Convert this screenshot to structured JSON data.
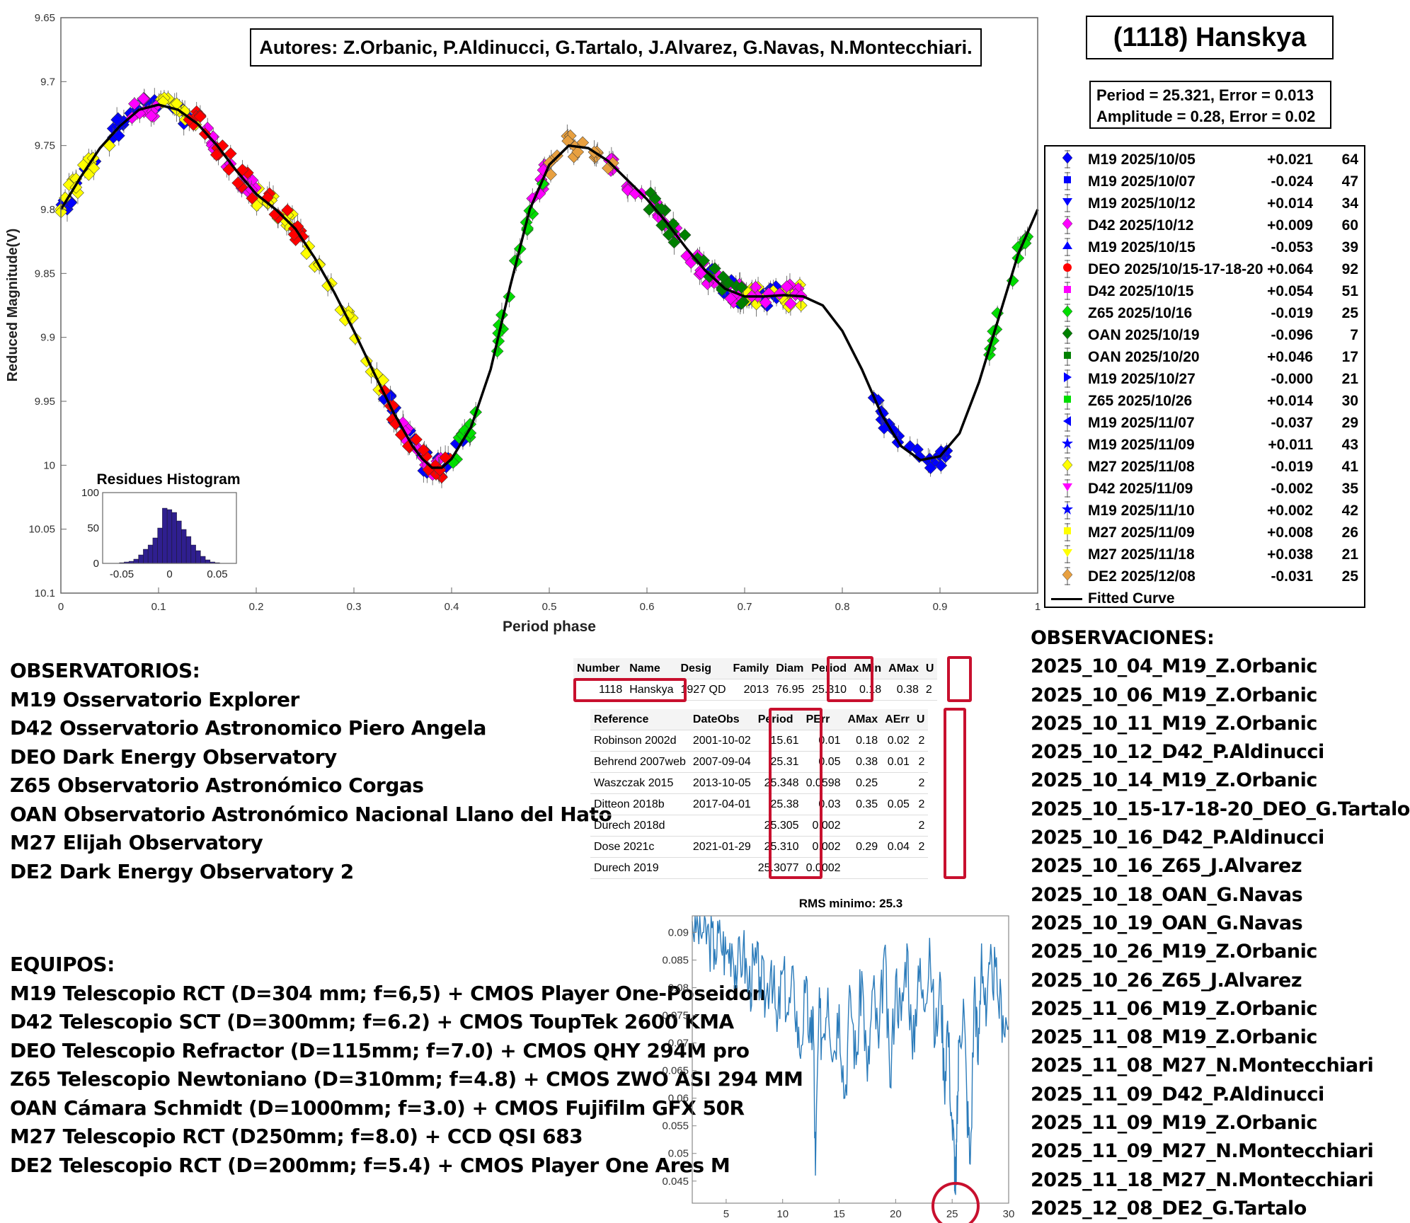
{
  "title": "(1118) Hanskya",
  "authors": "Autores: Z.Orbanic, P.Aldinucci, G.Tartalo, J.Alvarez, G.Navas, N.Montecchiari.",
  "period_box": {
    "line1": "Period =  25.321, Error = 0.013",
    "line2": "Amplitude = 0.28, Error = 0.02"
  },
  "legend": {
    "items": [
      {
        "name": "M19 2025/10/05",
        "offset": "+0.021",
        "count": "64",
        "color": "#0000ff",
        "marker": "diamond"
      },
      {
        "name": "M19 2025/10/07",
        "offset": "-0.024",
        "count": "47",
        "color": "#0000ff",
        "marker": "square"
      },
      {
        "name": "M19 2025/10/12",
        "offset": "+0.014",
        "count": "34",
        "color": "#0000ff",
        "marker": "tri-down"
      },
      {
        "name": "D42 2025/10/12",
        "offset": "+0.009",
        "count": "60",
        "color": "#ff00ff",
        "marker": "diamond"
      },
      {
        "name": "M19 2025/10/15",
        "offset": "-0.053",
        "count": "39",
        "color": "#0000ff",
        "marker": "tri-up"
      },
      {
        "name": "DEO 2025/10/15-17-18-20",
        "offset": "+0.064",
        "count": "92",
        "color": "#ff0000",
        "marker": "circle"
      },
      {
        "name": "D42 2025/10/15",
        "offset": "+0.054",
        "count": "51",
        "color": "#ff00ff",
        "marker": "square"
      },
      {
        "name": "Z65 2025/10/16",
        "offset": "-0.019",
        "count": "25",
        "color": "#00dd00",
        "marker": "diamond"
      },
      {
        "name": "OAN 2025/10/19",
        "offset": "-0.096",
        "count": "7",
        "color": "#008000",
        "marker": "diamond"
      },
      {
        "name": "OAN 2025/10/20",
        "offset": "+0.046",
        "count": "17",
        "color": "#008000",
        "marker": "square"
      },
      {
        "name": "M19 2025/10/27",
        "offset": "-0.000",
        "count": "21",
        "color": "#0000ff",
        "marker": "tri-right"
      },
      {
        "name": "Z65 2025/10/26",
        "offset": "+0.014",
        "count": "30",
        "color": "#00dd00",
        "marker": "square"
      },
      {
        "name": "M19 2025/11/07",
        "offset": "-0.037",
        "count": "29",
        "color": "#0000ff",
        "marker": "tri-left"
      },
      {
        "name": "M19 2025/11/09",
        "offset": "+0.011",
        "count": "43",
        "color": "#0000ff",
        "marker": "star"
      },
      {
        "name": "M27 2025/11/08",
        "offset": "-0.019",
        "count": "41",
        "color": "#ffff00",
        "marker": "diamond"
      },
      {
        "name": "D42 2025/11/09",
        "offset": "-0.002",
        "count": "35",
        "color": "#ff00ff",
        "marker": "tri-down"
      },
      {
        "name": "M19 2025/11/10",
        "offset": "+0.002",
        "count": "42",
        "color": "#0000ff",
        "marker": "star"
      },
      {
        "name": "M27 2025/11/09",
        "offset": "+0.008",
        "count": "26",
        "color": "#ffff00",
        "marker": "square"
      },
      {
        "name": "M27 2025/11/18",
        "offset": "+0.038",
        "count": "21",
        "color": "#ffff00",
        "marker": "tri-down"
      },
      {
        "name": "DE2 2025/12/08",
        "offset": "-0.031",
        "count": "25",
        "color": "#e8a040",
        "marker": "diamond"
      }
    ],
    "fitted_label": "Fitted Curve"
  },
  "observatorios": {
    "heading": "OBSERVATORIOS:",
    "lines": [
      "M19 Osservatorio Explorer",
      "D42 Osservatorio Astronomico Piero Angela",
      "DEO Dark Energy Observatory",
      "Z65 Observatorio Astronómico Corgas",
      "OAN Observatorio Astronómico Nacional Llano del Hato",
      "M27 Elijah Observatory",
      "DE2 Dark Energy Observatory 2"
    ]
  },
  "equipos": {
    "heading": "EQUIPOS:",
    "lines": [
      "M19 Telescopio RCT (D=304 mm; f=6,5) + CMOS Player One-Poseidon",
      "D42 Telescopio SCT (D=300mm; f=6.2) + CMOS ToupTek 2600 KMA",
      "DEO Telescopio Refractor (D=115mm; f=7.0) + CMOS QHY 294M pro",
      "Z65 Telescopio Newtoniano (D=310mm; f=4.8) + CMOS ZWO ASI 294 MM",
      "OAN Cámara Schmidt (D=1000mm; f=3.0) + CMOS Fujifilm GFX 50R",
      "M27 Telescopio RCT (D250mm; f=8.0) + CCD QSI 683",
      "DE2 Telescopio RCT (D=200mm; f=5.4) + CMOS Player One Ares M"
    ]
  },
  "observaciones": {
    "heading": "OBSERVACIONES:",
    "lines": [
      "2025_10_04_M19_Z.Orbanic",
      "2025_10_06_M19_Z.Orbanic",
      "2025_10_11_M19_Z.Orbanic",
      "2025_10_12_D42_P.Aldinucci",
      "2025_10_14_M19_Z.Orbanic",
      "2025_10_15-17-18-20_DEO_G.Tartalo",
      "2025_10_16_D42_P.Aldinucci",
      "2025_10_16_Z65_J.Alvarez",
      "2025_10_18_OAN_G.Navas",
      "2025_10_19_OAN_G.Navas",
      "2025_10_26_M19_Z.Orbanic",
      "2025_10_26_Z65_J.Alvarez",
      "2025_11_06_M19_Z.Orbanic",
      "2025_11_08_M19_Z.Orbanic",
      "2025_11_08_M27_N.Montecchiari",
      "2025_11_09_D42_P.Aldinucci",
      "2025_11_09_M19_Z.Orbanic",
      "2025_11_09_M27_N.Montecchiari",
      "2025_11_18_M27_N.Montecchiari",
      "2025_12_08_DE2_G.Tartalo"
    ]
  },
  "lcdb_table": {
    "headers": [
      "Number",
      "Name",
      "Desig",
      "Family",
      "Diam",
      "Period",
      "AMin",
      "AMax",
      "U"
    ],
    "row": [
      "1118",
      "Hanskya",
      "1927 QD",
      "2013",
      "76.95",
      "25.310",
      "0.18",
      "0.38",
      "2"
    ]
  },
  "ref_table": {
    "headers": [
      "Reference",
      "DateObs",
      "Period",
      "PErr",
      "AMax",
      "AErr",
      "U"
    ],
    "rows": [
      [
        "Robinson 2002d",
        "2001-10-02",
        "15.61",
        "0.01",
        "0.18",
        "0.02",
        "2"
      ],
      [
        "Behrend 2007web",
        "2007-09-04",
        "25.31",
        "0.05",
        "0.38",
        "0.01",
        "2"
      ],
      [
        "Waszczak 2015",
        "2013-10-05",
        "25.348",
        "0.0598",
        "0.25",
        "",
        "2"
      ],
      [
        "Ditteon 2018b",
        "2017-04-01",
        "25.38",
        "0.03",
        "0.35",
        "0.05",
        "2"
      ],
      [
        "Durech 2018d",
        "",
        "25.305",
        "0.002",
        "",
        "",
        "2"
      ],
      [
        "Dose 2021c",
        "2021-01-29",
        "25.310",
        "0.002",
        "0.29",
        "0.04",
        "2"
      ],
      [
        "Durech 2019",
        "",
        "25.3077",
        "0.0002",
        "",
        "",
        ""
      ]
    ]
  },
  "chart_data": [
    {
      "type": "scatter",
      "title": "(1118) Hanskya",
      "xlabel": "Period phase",
      "ylabel": "Reduced Magnitude(V)",
      "xlim": [
        0,
        1
      ],
      "ylim": [
        9.65,
        10.1
      ],
      "y_reversed": true,
      "xticks": [
        "0",
        "0.1",
        "0.2",
        "0.3",
        "0.4",
        "0.5",
        "0.6",
        "0.7",
        "0.8",
        "0.9",
        "1"
      ],
      "yticks": [
        "9.65",
        "9.7",
        "9.75",
        "9.8",
        "9.85",
        "9.9",
        "9.95",
        "10",
        "10.05",
        "10.1"
      ],
      "fitted_curve": {
        "x": [
          0.0,
          0.02,
          0.04,
          0.06,
          0.08,
          0.1,
          0.12,
          0.14,
          0.16,
          0.18,
          0.2,
          0.22,
          0.24,
          0.26,
          0.28,
          0.3,
          0.32,
          0.34,
          0.36,
          0.37,
          0.38,
          0.39,
          0.4,
          0.42,
          0.44,
          0.46,
          0.48,
          0.5,
          0.52,
          0.54,
          0.56,
          0.58,
          0.6,
          0.62,
          0.64,
          0.66,
          0.68,
          0.7,
          0.72,
          0.74,
          0.76,
          0.78,
          0.8,
          0.82,
          0.84,
          0.86,
          0.88,
          0.9,
          0.92,
          0.94,
          0.96,
          0.98,
          1.0
        ],
        "y": [
          9.8,
          9.775,
          9.752,
          9.735,
          9.722,
          9.718,
          9.722,
          9.733,
          9.75,
          9.77,
          9.788,
          9.8,
          9.815,
          9.838,
          9.865,
          9.895,
          9.927,
          9.958,
          9.985,
          9.995,
          10.002,
          10.002,
          9.995,
          9.97,
          9.925,
          9.86,
          9.8,
          9.765,
          9.75,
          9.752,
          9.762,
          9.777,
          9.792,
          9.81,
          9.83,
          9.848,
          9.862,
          9.868,
          9.868,
          9.867,
          9.868,
          9.875,
          9.895,
          9.925,
          9.96,
          9.985,
          9.996,
          9.993,
          9.975,
          9.935,
          9.885,
          9.835,
          9.8
        ]
      },
      "series_bands": [
        {
          "name": "M19 blue",
          "color": "#0000ff",
          "ranges": [
            [
              0.0,
              0.13
            ],
            [
              0.33,
              0.42
            ],
            [
              0.66,
              0.74
            ],
            [
              0.83,
              0.91
            ]
          ]
        },
        {
          "name": "M27 yellow",
          "color": "#ffff00",
          "ranges": [
            [
              0.0,
              0.05
            ],
            [
              0.1,
              0.14
            ],
            [
              0.2,
              0.33
            ],
            [
              0.69,
              0.76
            ]
          ]
        },
        {
          "name": "D42 magenta",
          "color": "#ff00ff",
          "ranges": [
            [
              0.07,
              0.1
            ],
            [
              0.15,
              0.2
            ],
            [
              0.35,
              0.39
            ],
            [
              0.48,
              0.5
            ],
            [
              0.56,
              0.76
            ]
          ]
        },
        {
          "name": "DEO red",
          "color": "#ff0000",
          "ranges": [
            [
              0.13,
              0.25
            ],
            [
              0.33,
              0.4
            ]
          ]
        },
        {
          "name": "Z65 green",
          "color": "#00dd00",
          "ranges": [
            [
              0.4,
              0.5
            ],
            [
              0.95,
              0.99
            ]
          ]
        },
        {
          "name": "OAN green",
          "color": "#008000",
          "ranges": [
            [
              0.6,
              0.7
            ]
          ]
        },
        {
          "name": "DE2 orange",
          "color": "#e8a040",
          "ranges": [
            [
              0.5,
              0.57
            ]
          ]
        }
      ]
    },
    {
      "type": "bar",
      "title": "Residues Histogram",
      "xticks": [
        "-0.05",
        "0",
        "0.05"
      ],
      "yticks": [
        "0",
        "50",
        "100"
      ],
      "xlim": [
        -0.07,
        0.07
      ],
      "ylim": [
        0,
        100
      ],
      "bin_width": 0.005,
      "bin_centers": [
        -0.05,
        -0.045,
        -0.04,
        -0.035,
        -0.03,
        -0.025,
        -0.02,
        -0.015,
        -0.01,
        -0.005,
        0.0,
        0.005,
        0.01,
        0.015,
        0.02,
        0.025,
        0.03,
        0.035,
        0.04,
        0.045,
        0.05
      ],
      "values": [
        1,
        2,
        3,
        6,
        12,
        20,
        26,
        36,
        50,
        78,
        76,
        72,
        60,
        48,
        38,
        26,
        18,
        10,
        5,
        2,
        1
      ],
      "color": "#2f1f8f"
    },
    {
      "type": "line",
      "title": "RMS minimo: 25.3",
      "xlim": [
        2,
        30
      ],
      "ylim": [
        0.041,
        0.093
      ],
      "xticks": [
        "5",
        "10",
        "15",
        "20",
        "25",
        "30"
      ],
      "yticks": [
        "0.045",
        "0.05",
        "0.055",
        "0.06",
        "0.065",
        "0.07",
        "0.075",
        "0.08",
        "0.085",
        "0.09"
      ],
      "color": "#2b7bba",
      "highlight_x": 25.3,
      "x": [
        2.0,
        2.5,
        3.0,
        3.5,
        4.0,
        4.5,
        5.0,
        5.5,
        6.0,
        6.5,
        7.0,
        7.5,
        8.0,
        8.5,
        9.0,
        9.5,
        10.0,
        10.5,
        11.0,
        11.5,
        12.0,
        12.5,
        12.7,
        12.9,
        13.2,
        13.5,
        14.0,
        14.5,
        15.0,
        15.5,
        16.0,
        16.5,
        17.0,
        17.5,
        18.0,
        18.5,
        19.0,
        19.5,
        20.0,
        20.5,
        21.0,
        21.5,
        22.0,
        22.5,
        23.0,
        23.5,
        24.0,
        24.3,
        24.6,
        25.0,
        25.2,
        25.3,
        25.4,
        25.6,
        26.0,
        26.3,
        26.6,
        27.0,
        27.3,
        27.6,
        28.0,
        28.5,
        29.0,
        29.5,
        30.0
      ],
      "y": [
        0.092,
        0.091,
        0.09,
        0.089,
        0.087,
        0.089,
        0.086,
        0.088,
        0.083,
        0.087,
        0.08,
        0.084,
        0.082,
        0.078,
        0.085,
        0.072,
        0.083,
        0.075,
        0.081,
        0.068,
        0.079,
        0.07,
        0.076,
        0.046,
        0.075,
        0.071,
        0.08,
        0.068,
        0.077,
        0.06,
        0.079,
        0.066,
        0.083,
        0.063,
        0.08,
        0.069,
        0.087,
        0.062,
        0.082,
        0.074,
        0.088,
        0.067,
        0.084,
        0.076,
        0.089,
        0.07,
        0.081,
        0.063,
        0.074,
        0.055,
        0.05,
        0.0425,
        0.052,
        0.07,
        0.078,
        0.06,
        0.048,
        0.082,
        0.066,
        0.088,
        0.073,
        0.085,
        0.079,
        0.075,
        0.073
      ]
    }
  ]
}
